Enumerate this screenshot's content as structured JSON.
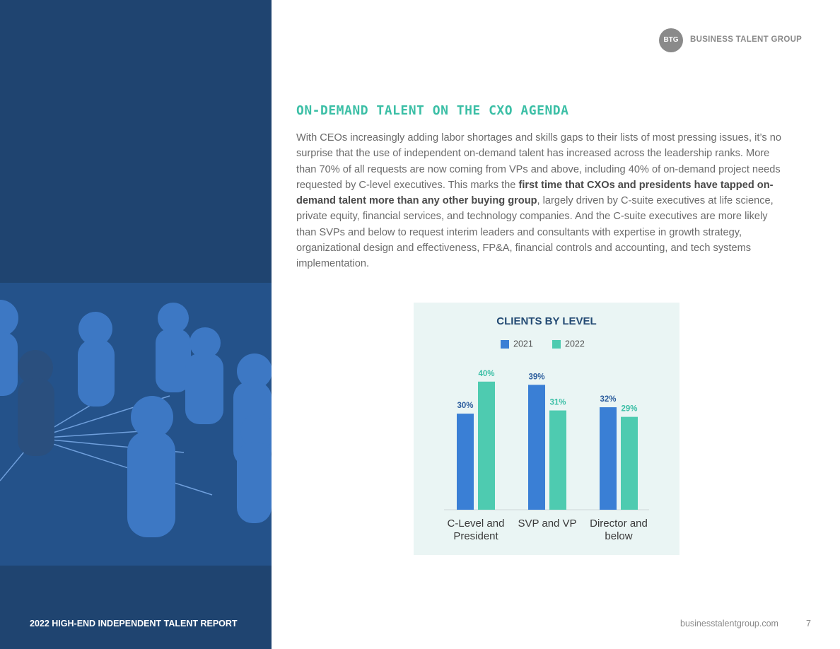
{
  "header": {
    "logo_mark": "BTG",
    "logo_text": "BUSINESS TALENT GROUP"
  },
  "heading": "ON-DEMAND TALENT ON THE CXO AGENDA",
  "body": {
    "before": "With CEOs increasingly adding labor shortages and skills gaps to their lists of most pressing issues, it’s no surprise that the use of independent on-demand talent has increased across the leadership ranks. More than 70% of all requests are now coming from VPs and above, including 40% of on-demand project needs requested by C-level executives. This marks the ",
    "bold": "first time that CXOs and presidents have tapped on-demand talent more than any other buying group",
    "after": ", largely driven by C-suite executives at life science, private equity, financial services, and technology companies. And the C-suite executives are more likely than SVPs and below to request interim leaders and consultants with expertise in growth strategy, organizational design and effectiveness, FP&A, financial controls and accounting, and tech systems implementation."
  },
  "chart_data": {
    "type": "bar",
    "title": "CLIENTS BY LEVEL",
    "categories": [
      "C-Level and President",
      "SVP and VP",
      "Director and below"
    ],
    "series": [
      {
        "name": "2021",
        "color": "#3a7fd5",
        "values": [
          30,
          39,
          32
        ],
        "value_labels": [
          "30%",
          "39%",
          "32%"
        ]
      },
      {
        "name": "2022",
        "color": "#4ecbb0",
        "values": [
          40,
          31,
          29
        ],
        "value_labels": [
          "40%",
          "31%",
          "29%"
        ]
      }
    ]
  },
  "footer": {
    "report": "2022 HIGH-END INDEPENDENT TALENT REPORT",
    "url": "businesstalentgroup.com",
    "page": "7"
  }
}
